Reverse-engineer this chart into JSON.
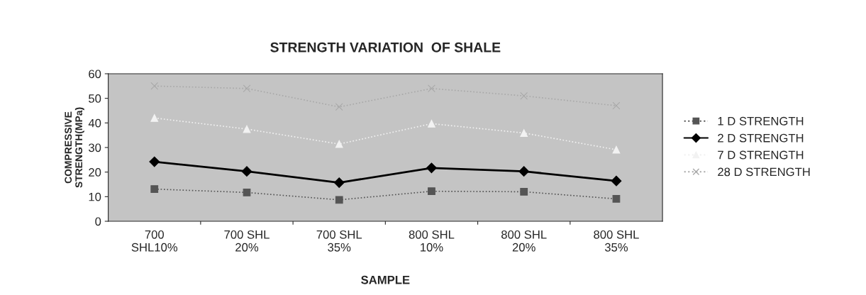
{
  "chart_data": {
    "type": "line",
    "title": "STRENGTH VARIATION  OF SHALE",
    "xlabel": "SAMPLE",
    "ylabel": "COMPRESSIVE\nSTRENGTH(MPa)",
    "categories": [
      "700\nSHL10%",
      "700 SHL\n20%",
      "700 SHL\n35%",
      "800 SHL\n10%",
      "800 SHL\n20%",
      "800 SHL\n35%"
    ],
    "series": [
      {
        "name": "1 D STRENGTH",
        "color": "#555555",
        "marker": "square",
        "line_style": "dotted",
        "values": [
          13.1,
          11.7,
          8.7,
          12.2,
          12.0,
          9.1
        ]
      },
      {
        "name": "2 D STRENGTH",
        "color": "#000000",
        "marker": "diamond",
        "line_style": "solid",
        "values": [
          24.2,
          20.3,
          15.7,
          21.7,
          20.3,
          16.4
        ]
      },
      {
        "name": "7 D STRENGTH",
        "color": "#f2f2f2",
        "marker": "triangle",
        "line_style": "dotted",
        "values": [
          42.0,
          37.5,
          31.4,
          39.7,
          35.9,
          29.1
        ]
      },
      {
        "name": "28 D STRENGTH",
        "color": "#a8a8a8",
        "marker": "cross",
        "line_style": "dotted",
        "values": [
          55,
          54,
          46.5,
          54,
          51,
          47
        ]
      }
    ],
    "ylim": [
      0,
      60
    ],
    "yticks": [
      0,
      10,
      20,
      30,
      40,
      50,
      60
    ],
    "grid": false,
    "legend": "right"
  }
}
